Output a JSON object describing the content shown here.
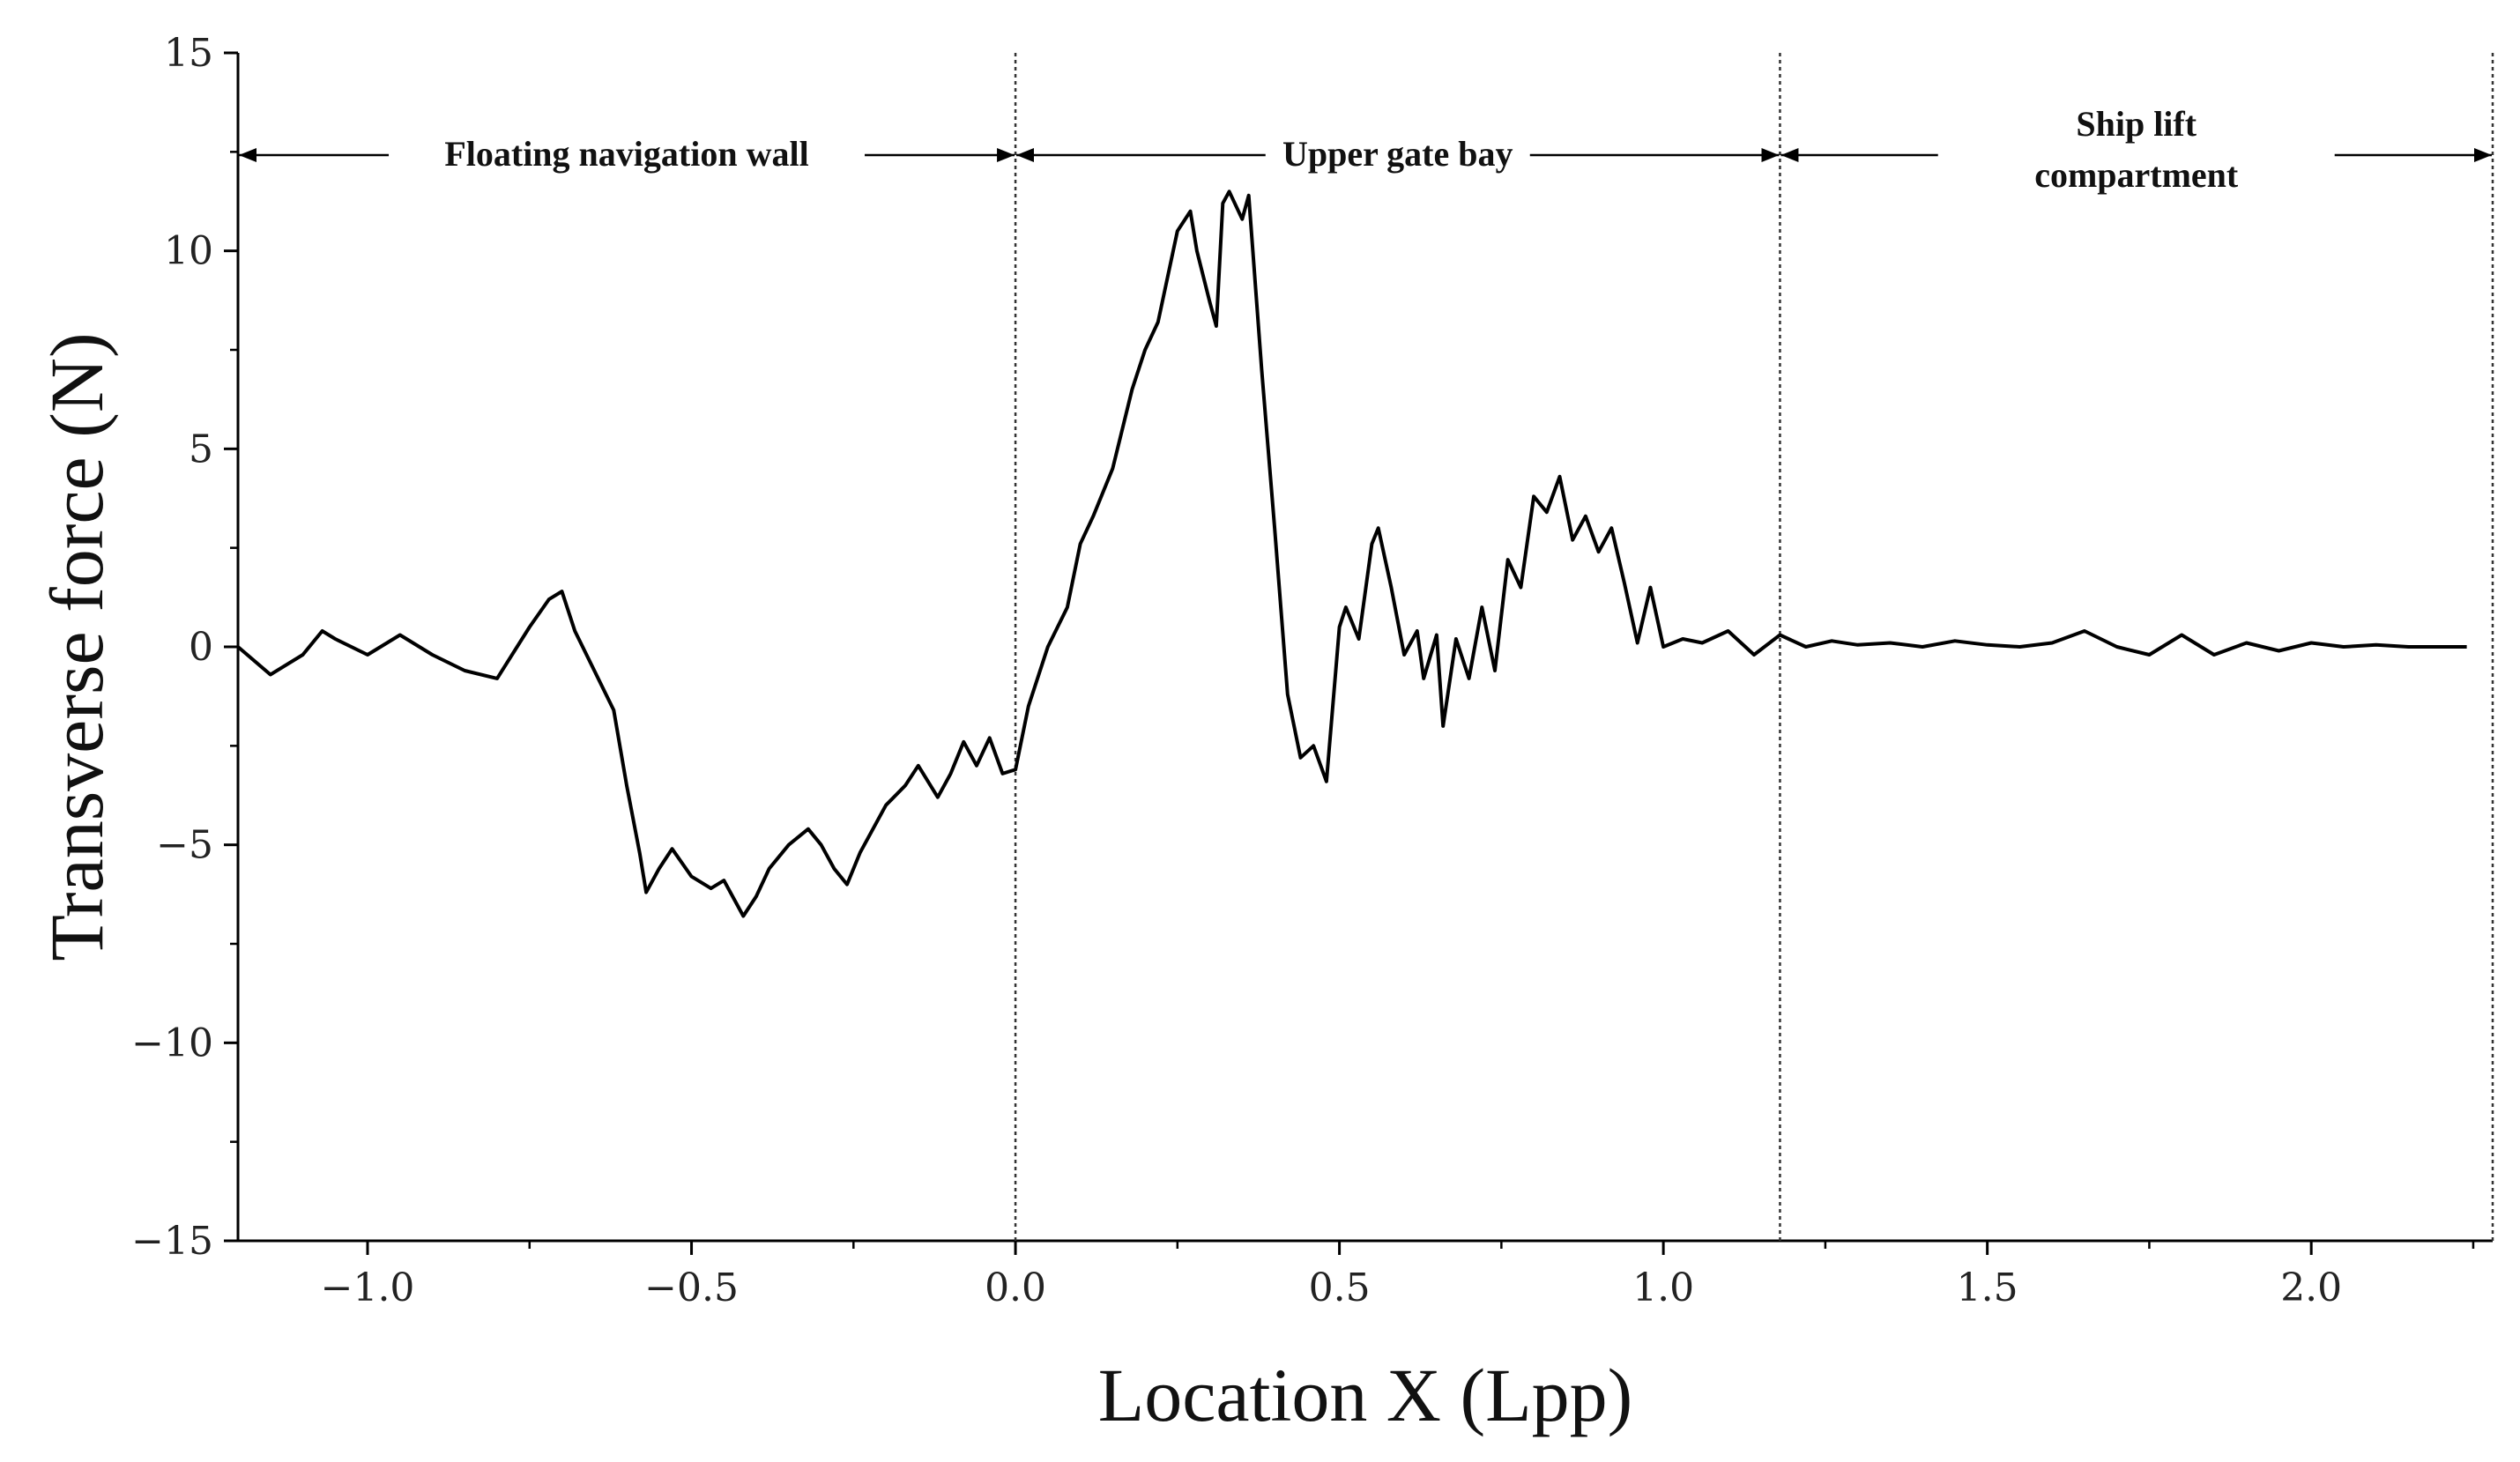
{
  "chart_data": {
    "type": "line",
    "title": "",
    "xlabel": "Location X (Lpp)",
    "ylabel": "Transverse force (N)",
    "xlim": [
      -1.2,
      2.28
    ],
    "ylim": [
      -15,
      15
    ],
    "xticks": [
      -1.0,
      -0.5,
      0.0,
      0.5,
      1.0,
      1.5,
      2.0
    ],
    "xtick_labels": [
      "−1.0",
      "−0.5",
      "0.0",
      "0.5",
      "1.0",
      "1.5",
      "2.0"
    ],
    "yticks": [
      15,
      10,
      5,
      0,
      -5,
      -10,
      -15
    ],
    "ytick_labels": [
      "15",
      "10",
      "5",
      "0",
      "−5",
      "−10",
      "−15"
    ],
    "grid": false,
    "boundaries": [
      0.0,
      1.18,
      2.28
    ],
    "regions": [
      {
        "lines": [
          "Floating navigation wall"
        ],
        "x_start": -1.2,
        "x_end": 0.0
      },
      {
        "lines": [
          "Upper gate bay"
        ],
        "x_start": 0.0,
        "x_end": 1.18
      },
      {
        "lines": [
          "Ship lift",
          "compartment"
        ],
        "x_start": 1.18,
        "x_end": 2.28
      }
    ],
    "series": [
      {
        "color": "#000000",
        "x": [
          -1.2,
          -1.15,
          -1.1,
          -1.07,
          -1.05,
          -1.0,
          -0.95,
          -0.9,
          -0.85,
          -0.8,
          -0.75,
          -0.72,
          -0.7,
          -0.68,
          -0.65,
          -0.62,
          -0.6,
          -0.58,
          -0.57,
          -0.55,
          -0.53,
          -0.5,
          -0.47,
          -0.45,
          -0.42,
          -0.4,
          -0.38,
          -0.35,
          -0.32,
          -0.3,
          -0.28,
          -0.26,
          -0.24,
          -0.22,
          -0.2,
          -0.17,
          -0.15,
          -0.12,
          -0.1,
          -0.08,
          -0.06,
          -0.04,
          -0.02,
          0.0,
          0.02,
          0.05,
          0.08,
          0.1,
          0.12,
          0.15,
          0.18,
          0.2,
          0.22,
          0.25,
          0.27,
          0.28,
          0.3,
          0.31,
          0.32,
          0.33,
          0.35,
          0.36,
          0.38,
          0.4,
          0.42,
          0.44,
          0.46,
          0.48,
          0.5,
          0.51,
          0.53,
          0.55,
          0.56,
          0.58,
          0.6,
          0.62,
          0.63,
          0.65,
          0.66,
          0.68,
          0.7,
          0.72,
          0.74,
          0.76,
          0.78,
          0.8,
          0.82,
          0.84,
          0.86,
          0.88,
          0.9,
          0.92,
          0.94,
          0.96,
          0.98,
          1.0,
          1.03,
          1.06,
          1.1,
          1.14,
          1.18,
          1.22,
          1.26,
          1.3,
          1.35,
          1.4,
          1.45,
          1.5,
          1.55,
          1.6,
          1.65,
          1.7,
          1.75,
          1.8,
          1.85,
          1.9,
          1.95,
          2.0,
          2.05,
          2.1,
          2.15,
          2.2,
          2.24
        ],
        "y": [
          0.0,
          -0.7,
          -0.2,
          0.4,
          0.2,
          -0.2,
          0.3,
          -0.2,
          -0.6,
          -0.8,
          0.5,
          1.2,
          1.4,
          0.4,
          -0.6,
          -1.6,
          -3.5,
          -5.2,
          -6.2,
          -5.6,
          -5.1,
          -5.8,
          -6.1,
          -5.9,
          -6.8,
          -6.3,
          -5.6,
          -5.0,
          -4.6,
          -5.0,
          -5.6,
          -6.0,
          -5.2,
          -4.6,
          -4.0,
          -3.5,
          -3.0,
          -3.8,
          -3.2,
          -2.4,
          -3.0,
          -2.3,
          -3.2,
          -3.1,
          -1.5,
          0.0,
          1.0,
          2.6,
          3.3,
          4.5,
          6.5,
          7.5,
          8.2,
          10.5,
          11.0,
          10.0,
          8.7,
          8.1,
          11.2,
          11.5,
          10.8,
          11.4,
          7.0,
          3.0,
          -1.2,
          -2.8,
          -2.5,
          -3.4,
          0.5,
          1.0,
          0.2,
          2.6,
          3.0,
          1.5,
          -0.2,
          0.4,
          -0.8,
          0.3,
          -2.0,
          0.2,
          -0.8,
          1.0,
          -0.6,
          2.2,
          1.5,
          3.8,
          3.4,
          4.3,
          2.7,
          3.3,
          2.4,
          3.0,
          1.6,
          0.1,
          1.5,
          0.0,
          0.2,
          0.1,
          0.4,
          -0.2,
          0.3,
          0.0,
          0.15,
          0.05,
          0.1,
          0.0,
          0.15,
          0.05,
          0.0,
          0.1,
          0.4,
          0.0,
          -0.2,
          0.3,
          -0.2,
          0.1,
          -0.1,
          0.1,
          0.0,
          0.05,
          0.0,
          0.0,
          0.0
        ]
      }
    ]
  }
}
